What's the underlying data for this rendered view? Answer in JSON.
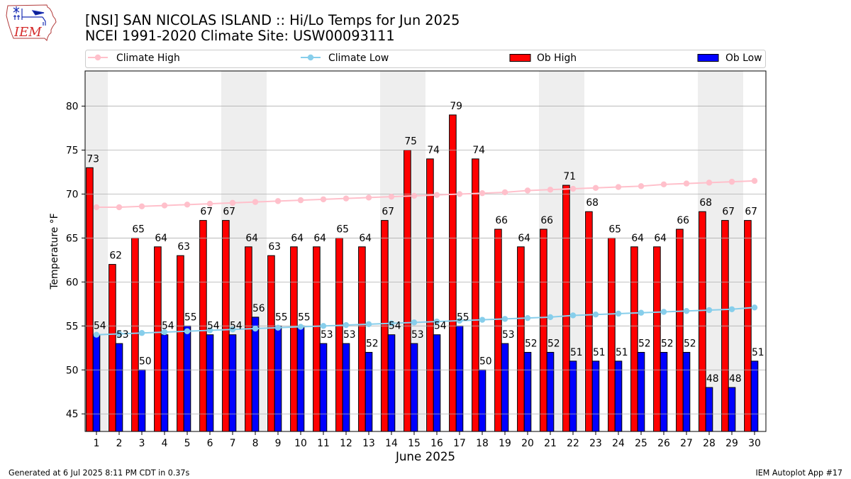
{
  "logo": {
    "text": "IEM"
  },
  "footer": {
    "generated": "Generated at 6 Jul 2025 8:11 PM CDT in 0.37s",
    "app": "IEM Autoplot App #17"
  },
  "chart_data": {
    "type": "bar",
    "title": "[NSI] SAN NICOLAS ISLAND :: Hi/Lo Temps for Jun 2025",
    "subtitle": "NCEI 1991-2020 Climate Site: USW00093111",
    "xlabel": "June 2025",
    "ylabel": "Temperature °F",
    "categories": [
      "1",
      "2",
      "3",
      "4",
      "5",
      "6",
      "7",
      "8",
      "9",
      "10",
      "11",
      "12",
      "13",
      "14",
      "15",
      "16",
      "17",
      "18",
      "19",
      "20",
      "21",
      "22",
      "23",
      "24",
      "25",
      "26",
      "27",
      "28",
      "29",
      "30"
    ],
    "ylim": [
      43,
      84
    ],
    "yticks": [
      45,
      50,
      55,
      60,
      65,
      70,
      75,
      80
    ],
    "grid": true,
    "legend": "top",
    "shaded_days": [
      1,
      7,
      8,
      14,
      15,
      21,
      22,
      28,
      29
    ],
    "series": [
      {
        "name": "Climate High",
        "kind": "line",
        "marker": "circle",
        "color": "#FFC0CB",
        "values": [
          68.5,
          68.5,
          68.6,
          68.7,
          68.8,
          68.9,
          69.0,
          69.1,
          69.2,
          69.3,
          69.4,
          69.5,
          69.6,
          69.7,
          69.8,
          69.9,
          70.0,
          70.1,
          70.2,
          70.4,
          70.5,
          70.6,
          70.7,
          70.8,
          70.9,
          71.1,
          71.2,
          71.3,
          71.4,
          71.5
        ]
      },
      {
        "name": "Climate Low",
        "kind": "line",
        "marker": "circle",
        "color": "#87CEEB",
        "values": [
          54.0,
          54.1,
          54.2,
          54.3,
          54.4,
          54.5,
          54.6,
          54.7,
          54.8,
          54.9,
          55.0,
          55.1,
          55.2,
          55.3,
          55.4,
          55.5,
          55.6,
          55.7,
          55.8,
          55.9,
          56.0,
          56.2,
          56.3,
          56.4,
          56.5,
          56.6,
          56.7,
          56.8,
          56.9,
          57.1
        ]
      },
      {
        "name": "Ob High",
        "kind": "bar",
        "color": "#FF0000",
        "edgecolor": "#000000",
        "data_labels": true,
        "values": [
          73,
          62,
          65,
          64,
          63,
          67,
          67,
          64,
          63,
          64,
          64,
          65,
          64,
          67,
          75,
          74,
          79,
          74,
          66,
          64,
          66,
          71,
          68,
          65,
          64,
          64,
          66,
          68,
          67,
          67
        ]
      },
      {
        "name": "Ob Low",
        "kind": "bar",
        "color": "#0000FF",
        "edgecolor": "#000000",
        "data_labels": true,
        "values": [
          54,
          53,
          50,
          54,
          55,
          54,
          54,
          56,
          55,
          55,
          53,
          53,
          52,
          54,
          53,
          54,
          55,
          50,
          53,
          52,
          52,
          51,
          51,
          51,
          52,
          52,
          52,
          48,
          48,
          51
        ]
      }
    ]
  }
}
